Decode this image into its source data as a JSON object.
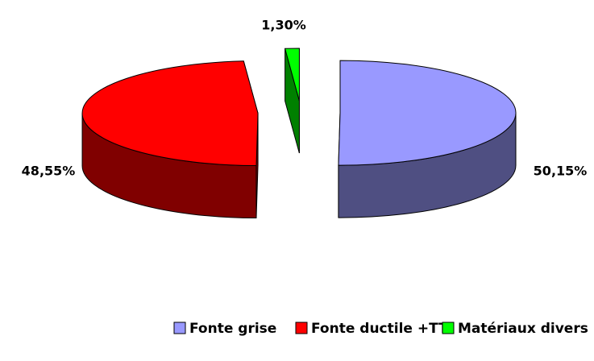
{
  "chart_data": {
    "type": "pie3d",
    "categories": [
      "Fonte grise",
      "Fonte ductile +TT",
      "Matériaux divers"
    ],
    "values": [
      50.15,
      48.55,
      1.3
    ],
    "value_labels": [
      "50,15%",
      "48,55%",
      "1,30%"
    ],
    "colors": [
      "#9999ff",
      "#ff0000",
      "#00ff00"
    ],
    "side_colors": [
      "#4f4f82",
      "#800000",
      "#008000"
    ],
    "legend": "bottom"
  }
}
